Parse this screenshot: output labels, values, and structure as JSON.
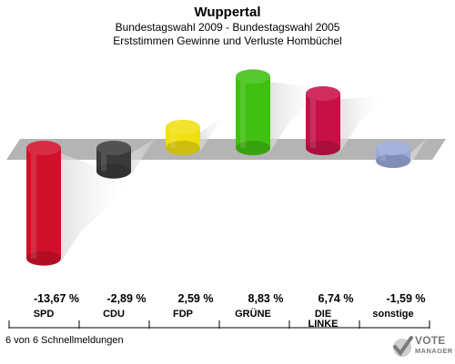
{
  "header": {
    "title": "Wuppertal",
    "subtitle_line1": "Bundestagswahl 2009 - Bundestagswahl 2005",
    "subtitle_line2": "Erststimmen Gewinne und Verluste Hombüchel"
  },
  "footer": {
    "status": "6 von 6 Schnellmeldungen"
  },
  "logo": {
    "line1": "VOTE",
    "line2": "MANAGER"
  },
  "chart_data": {
    "type": "bar",
    "title": "Wuppertal",
    "subtitle": "Bundestagswahl 2009 - Bundestagswahl 2005 / Erststimmen Gewinne und Verluste Hombüchel",
    "categories": [
      "SPD",
      "CDU",
      "FDP",
      "GRÜNE",
      "DIE LINKE",
      "sonstige"
    ],
    "category_lines": [
      [
        "SPD"
      ],
      [
        "CDU"
      ],
      [
        "FDP"
      ],
      [
        "GRÜNE"
      ],
      [
        "DIE",
        "LINKE"
      ],
      [
        "sonstige"
      ]
    ],
    "values": [
      -13.67,
      -2.89,
      2.59,
      8.83,
      6.74,
      -1.59
    ],
    "value_labels": [
      "-13,67 %",
      "-2,89 %",
      "2,59 %",
      "8,83 %",
      "6,74 %",
      "-1,59 %"
    ],
    "colors": [
      "#d0102a",
      "#3a3a3a",
      "#f0e010",
      "#40c010",
      "#c81048",
      "#98a8d8"
    ],
    "unit": "%",
    "xlabel": "",
    "ylabel": "",
    "ylim": [
      -13.67,
      8.83
    ],
    "legend": "none",
    "grid": false
  }
}
